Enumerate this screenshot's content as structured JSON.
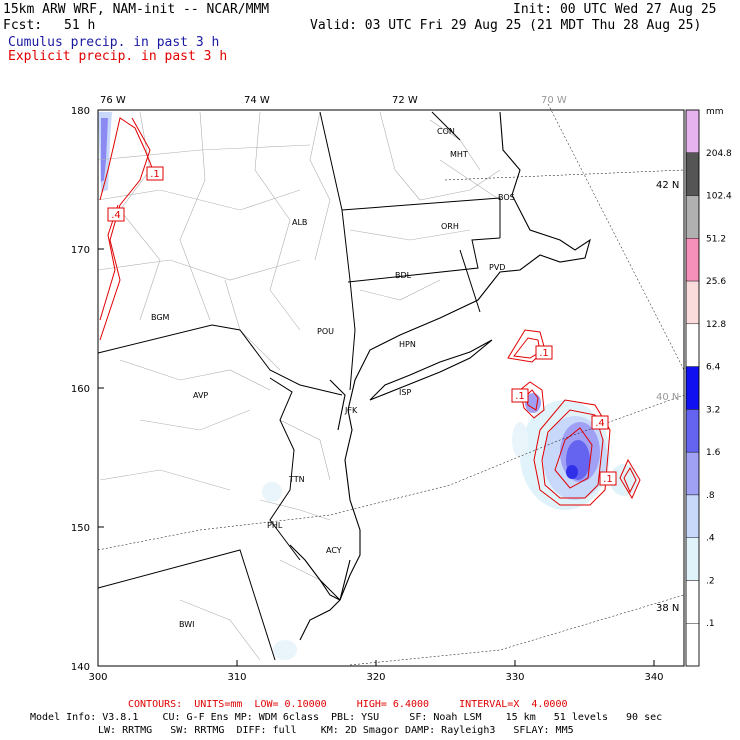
{
  "header": {
    "model": "15km ARW WRF, NAM-init -- NCAR/MMM",
    "init": "Init: 00 UTC Wed 27 Aug 25",
    "fcst_label": "Fcst:",
    "fcst_value": "51 h",
    "valid": "Valid: 03 UTC Fri 29 Aug 25 (21 MDT Thu 28 Aug 25)",
    "cumulus": "Cumulus precip. in past 3 h",
    "explicit": "Explicit precip. in past 3 h"
  },
  "map": {
    "lon_labels": [
      "76 W",
      "74 W",
      "72 W",
      "70 W"
    ],
    "lat_labels": [
      "42 N",
      "40 N",
      "38 N"
    ],
    "x_ticks": [
      "300",
      "310",
      "320",
      "330",
      "340"
    ],
    "y_ticks": [
      "140",
      "150",
      "160",
      "170",
      "180"
    ],
    "stations": [
      "CON",
      "MHT",
      "BOS",
      "ORH",
      "ALB",
      "PVD",
      "BDL",
      "BGM",
      "POU",
      "HPN",
      "AVP",
      "ISP",
      "JFK",
      "TTN",
      "PHL",
      "ACY",
      "BWI"
    ],
    "contour_labels": [
      ".1",
      ".4",
      ".1",
      ".1",
      ".4",
      ".1"
    ]
  },
  "legend": {
    "unit": "mm",
    "levels": [
      "204.8",
      "102.4",
      "51.2",
      "25.6",
      "12.8",
      "6.4",
      "3.2",
      "1.6",
      ".8",
      ".4",
      ".2",
      ".1"
    ],
    "colors": [
      "#e6b3ee",
      "#555555",
      "#b0b0b0",
      "#f590bb",
      "#fadcdc",
      "#ffffff",
      "#1010f0",
      "#6464f0",
      "#a0a0f5",
      "#c8d8fa",
      "#e1f3fa",
      "#ffffff",
      "#ffffff"
    ]
  },
  "footer": {
    "contours": "CONTOURS:  UNITS=mm  LOW= 0.10000     HIGH= 6.4000     INTERVAL=X  4.0000",
    "info1": "Model Info: V3.8.1    CU: G-F Ens MP: WDM 6class  PBL: YSU     SF: Noah LSM    15 km   51 levels   90 sec",
    "info2": "LW: RRTMG   SW: RRTMG  DIFF: full    KM: 2D Smagor DAMP: Rayleigh3   SFLAY: MM5"
  }
}
